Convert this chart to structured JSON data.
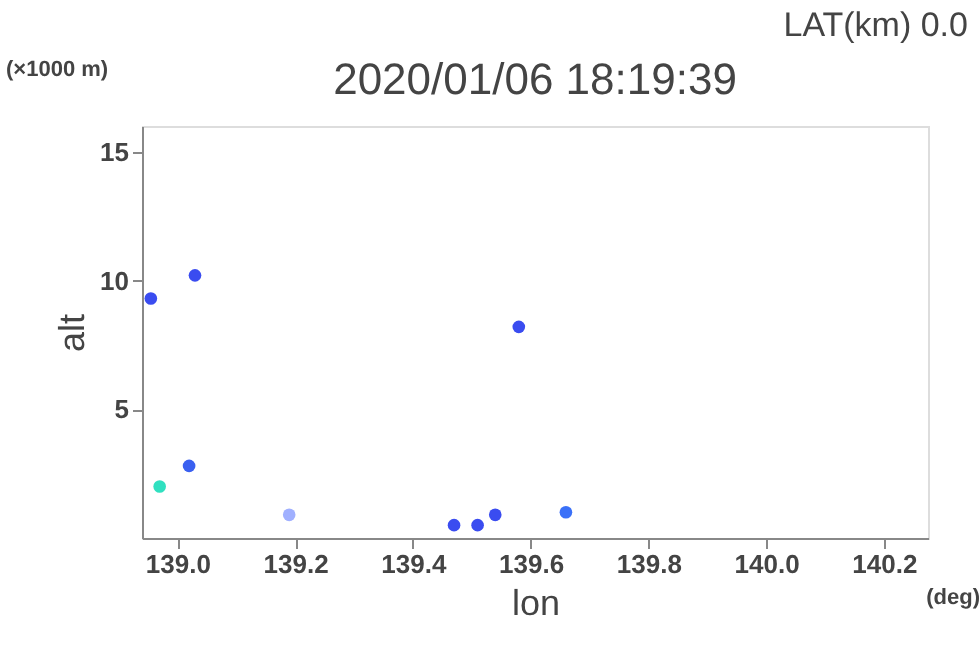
{
  "chart_data": {
    "type": "scatter",
    "title": "2020/01/06 18:19:39",
    "xlabel": "lon",
    "ylabel": "alt",
    "annotations": [
      "LAT(km) 0.0",
      "(×1000 m)",
      "(deg)"
    ],
    "x": [
      138.955,
      139.03,
      138.97,
      139.02,
      139.58,
      139.66,
      139.47,
      139.51,
      139.54,
      139.19
    ],
    "values": [
      9.3,
      10.2,
      2.0,
      2.8,
      8.2,
      1.0,
      0.5,
      0.5,
      0.9,
      0.9
    ],
    "colors": [
      "#3a4cf0",
      "#3a4cf0",
      "#30e0c0",
      "#3a60f0",
      "#3a4cf0",
      "#3a70f8",
      "#3a4cf0",
      "#3a4cf0",
      "#3a4cf0",
      "#a0b0ff"
    ],
    "grid": false,
    "legend": false,
    "xlim": [
      138.94,
      140.275
    ],
    "ylim": [
      0,
      16
    ],
    "xticks": [
      {
        "value": 139,
        "label": "139.0"
      },
      139.2,
      139.4,
      139.6,
      139.8,
      {
        "value": 140,
        "label": "140.0"
      },
      140.2
    ],
    "yticks": [
      5,
      10,
      15
    ]
  }
}
